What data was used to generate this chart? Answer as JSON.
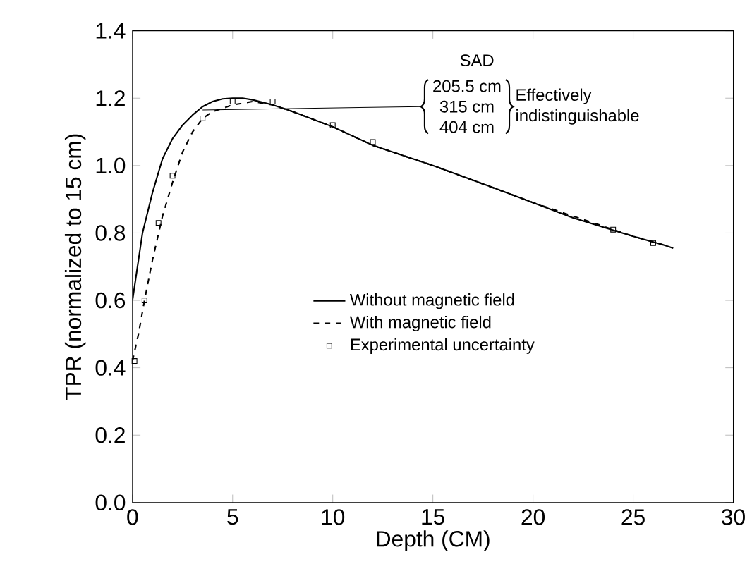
{
  "chart_data": {
    "type": "line",
    "xlabel": "Depth (CM)",
    "ylabel": "TPR (normalized to 15 cm)",
    "xlim": [
      0,
      30
    ],
    "ylim": [
      0,
      1.4
    ],
    "xticks": [
      0,
      5,
      10,
      15,
      20,
      25,
      30
    ],
    "yticks": [
      {
        "value": 0,
        "label": "0.0"
      },
      0.2,
      0.4,
      0.6,
      0.8,
      {
        "value": 1,
        "label": "1.0"
      },
      1.2,
      1.4
    ],
    "legend": "center right",
    "grid": false,
    "series": [
      {
        "name": "Without magnetic field",
        "color": "#000000",
        "line_style": "solid",
        "marker": "none",
        "x": [
          0,
          0.5,
          1,
          1.5,
          2,
          2.5,
          3,
          3.5,
          4,
          4.5,
          5,
          5.5,
          6,
          7,
          8,
          10,
          12,
          15,
          18,
          20,
          22,
          25,
          26.5,
          27
        ],
        "values": [
          0.6,
          0.8,
          0.92,
          1.02,
          1.08,
          1.12,
          1.15,
          1.175,
          1.19,
          1.198,
          1.2,
          1.2,
          1.195,
          1.18,
          1.16,
          1.115,
          1.06,
          1.0,
          0.935,
          0.89,
          0.845,
          0.79,
          0.765,
          0.755
        ]
      },
      {
        "name": "With magnetic field",
        "color": "#000000",
        "line_style": "dashed",
        "marker": "none",
        "x": [
          0,
          0.3,
          0.6,
          1,
          1.5,
          2,
          2.5,
          3,
          3.5,
          4,
          5,
          6,
          7,
          8,
          10,
          12,
          15,
          20,
          25,
          26.5
        ],
        "values": [
          0.42,
          0.5,
          0.6,
          0.72,
          0.85,
          0.95,
          1.04,
          1.1,
          1.14,
          1.16,
          1.18,
          1.19,
          1.18,
          1.16,
          1.115,
          1.06,
          1.0,
          0.89,
          0.79,
          0.765
        ]
      },
      {
        "name": "Experimental uncertainty",
        "type": "scatter",
        "color": "#000000",
        "marker": "square",
        "x": [
          0.1,
          0.6,
          1.3,
          2,
          3.5,
          5,
          7,
          10,
          12,
          24,
          26
        ],
        "values": [
          0.42,
          0.6,
          0.83,
          0.97,
          1.14,
          1.19,
          1.19,
          1.12,
          1.07,
          0.81,
          0.77
        ]
      }
    ],
    "annotations": [
      "SAD",
      {
        "text": "205.5 cm",
        "x": 3.5,
        "y": 1.165
      },
      "315 cm",
      "404 cm",
      "Effectively indistinguishable"
    ]
  }
}
